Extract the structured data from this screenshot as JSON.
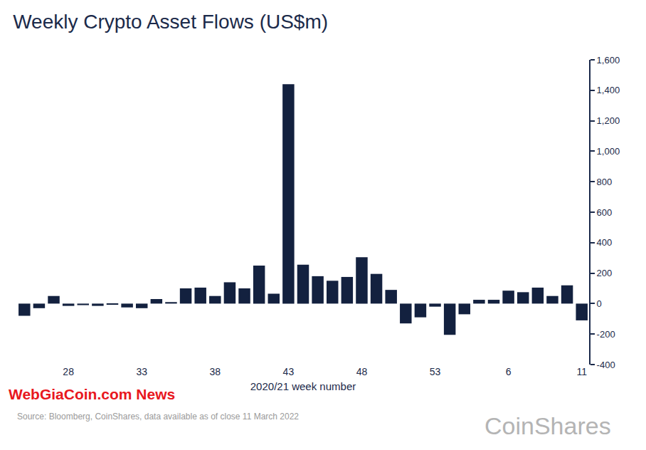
{
  "chart_data": {
    "type": "bar",
    "title": "Weekly Crypto Asset Flows (US$m)",
    "xlabel": "2020/21 week number",
    "source": "Source: Bloomberg, CoinShares, data available as of close 11 March 2022",
    "watermark": "WebGiaCoin.com News",
    "logo": "CoinShares",
    "categories": [
      null,
      null,
      null,
      "28",
      null,
      null,
      null,
      null,
      "33",
      null,
      null,
      null,
      null,
      "38",
      null,
      null,
      null,
      null,
      "43",
      null,
      null,
      null,
      null,
      "48",
      null,
      null,
      null,
      null,
      "53",
      null,
      null,
      null,
      null,
      "6",
      null,
      null,
      null,
      null,
      "11"
    ],
    "values": [
      -80,
      -30,
      50,
      -15,
      -10,
      -15,
      -5,
      -25,
      -30,
      30,
      10,
      100,
      105,
      50,
      140,
      100,
      250,
      65,
      1440,
      255,
      180,
      150,
      175,
      305,
      195,
      90,
      -130,
      -90,
      -20,
      -205,
      -70,
      25,
      25,
      85,
      75,
      105,
      50,
      120,
      -110
    ],
    "color": "#13213f",
    "ylim": [
      -400,
      1600
    ],
    "yticks": [
      {
        "value": 1600,
        "label": "1,600"
      },
      {
        "value": 1400,
        "label": "1,400"
      },
      {
        "value": 1200,
        "label": "1,200"
      },
      {
        "value": 1000,
        "label": "1,000"
      },
      800,
      600,
      400,
      200,
      0,
      -200,
      -400
    ],
    "grid": false
  }
}
